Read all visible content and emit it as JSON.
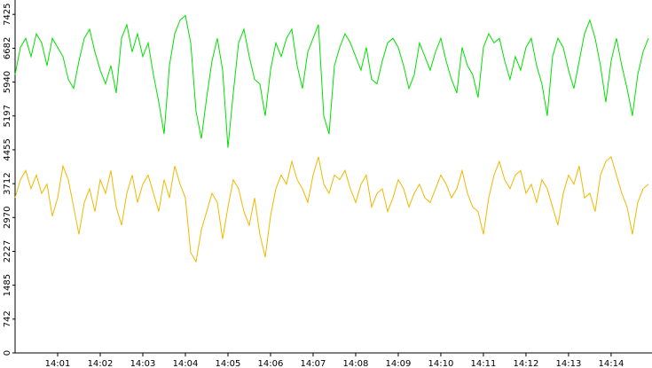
{
  "chart_data": {
    "type": "line",
    "x": [
      0,
      0.125,
      0.25,
      0.375,
      0.5,
      0.625,
      0.75,
      0.875,
      1,
      1.125,
      1.25,
      1.375,
      1.5,
      1.625,
      1.75,
      1.875,
      2,
      2.125,
      2.25,
      2.375,
      2.5,
      2.625,
      2.75,
      2.875,
      3,
      3.125,
      3.25,
      3.375,
      3.5,
      3.625,
      3.75,
      3.875,
      4,
      4.125,
      4.25,
      4.375,
      4.5,
      4.625,
      4.75,
      4.875,
      5,
      5.125,
      5.25,
      5.375,
      5.5,
      5.625,
      5.75,
      5.875,
      6,
      6.125,
      6.25,
      6.375,
      6.5,
      6.625,
      6.75,
      6.875,
      7,
      7.125,
      7.25,
      7.375,
      7.5,
      7.625,
      7.75,
      7.875,
      8,
      8.125,
      8.25,
      8.375,
      8.5,
      8.625,
      8.75,
      8.875,
      9,
      9.125,
      9.25,
      9.375,
      9.5,
      9.625,
      9.75,
      9.875,
      10,
      10.125,
      10.25,
      10.375,
      10.5,
      10.625,
      10.75,
      10.875,
      11,
      11.125,
      11.25,
      11.375,
      11.5,
      11.625,
      11.75,
      11.875,
      12,
      12.125,
      12.25,
      12.375,
      12.5,
      12.625,
      12.75,
      12.875,
      13,
      13.125,
      13.25,
      13.375,
      13.5,
      13.625,
      13.75,
      13.875,
      14,
      14.125,
      14.25,
      14.375,
      14.5,
      14.625,
      14.75,
      14.875
    ],
    "series": [
      {
        "color": "#00e000",
        "values": [
          6100,
          6700,
          6900,
          6500,
          7000,
          6800,
          6300,
          6900,
          6700,
          6500,
          6000,
          5800,
          6400,
          6900,
          7100,
          6600,
          6200,
          5900,
          6300,
          5700,
          6900,
          7200,
          6600,
          7000,
          6500,
          6800,
          6100,
          5500,
          4800,
          6300,
          7000,
          7300,
          7400,
          6800,
          5300,
          4700,
          5600,
          6400,
          6900,
          6200,
          4500,
          5700,
          6800,
          7100,
          6500,
          6000,
          5900,
          5200,
          6200,
          6800,
          6500,
          6900,
          7100,
          6300,
          5800,
          6600,
          6900,
          7200,
          5200,
          4800,
          6300,
          6700,
          7000,
          6800,
          6500,
          6200,
          6700,
          6000,
          5900,
          6400,
          6800,
          6900,
          6700,
          6300,
          5800,
          6100,
          6800,
          6500,
          6200,
          6600,
          6900,
          6400,
          6000,
          5700,
          6700,
          6300,
          6100,
          5600,
          6700,
          7000,
          6800,
          6900,
          6400,
          6000,
          6500,
          6200,
          6700,
          6900,
          6300,
          5900,
          5200,
          6500,
          6900,
          6700,
          6200,
          5800,
          6400,
          7000,
          7300,
          6900,
          6300,
          5500,
          6400,
          6900,
          6300,
          5800,
          5200,
          6100,
          6600,
          6900
        ]
      },
      {
        "color": "#f0b800",
        "values": [
          3400,
          3800,
          4000,
          3600,
          3900,
          3500,
          3700,
          3000,
          3400,
          4100,
          3800,
          3200,
          2600,
          3300,
          3600,
          3100,
          3800,
          3500,
          4000,
          3200,
          2800,
          3500,
          3900,
          3300,
          3700,
          3900,
          3500,
          3100,
          3800,
          3400,
          4100,
          3700,
          3400,
          2200,
          2000,
          2700,
          3100,
          3500,
          3300,
          2500,
          3200,
          3800,
          3600,
          3100,
          2800,
          3400,
          2600,
          2100,
          3000,
          3600,
          3900,
          3700,
          4200,
          3800,
          3600,
          3300,
          3900,
          4300,
          3700,
          3500,
          3900,
          3800,
          4000,
          3600,
          3300,
          3700,
          3900,
          3200,
          3500,
          3600,
          3100,
          3400,
          3800,
          3600,
          3200,
          3500,
          3700,
          3400,
          3300,
          3600,
          3900,
          3700,
          3400,
          3600,
          4000,
          3500,
          3200,
          3100,
          2600,
          3400,
          3900,
          4200,
          3800,
          3600,
          3900,
          4000,
          3500,
          3700,
          3300,
          3800,
          3600,
          3200,
          2800,
          3500,
          3900,
          3700,
          4100,
          3400,
          3500,
          3100,
          3900,
          4200,
          4300,
          3900,
          3500,
          3200,
          2600,
          3300,
          3600,
          3700
        ]
      }
    ],
    "xlim": [
      0,
      14.96
    ],
    "ylim": [
      0,
      7740
    ],
    "xticks": [
      {
        "value": 1,
        "label": "14:01"
      },
      {
        "value": 2,
        "label": "14:02"
      },
      {
        "value": 3,
        "label": "14:03"
      },
      {
        "value": 4,
        "label": "14:04"
      },
      {
        "value": 5,
        "label": "14:05"
      },
      {
        "value": 6,
        "label": "14:06"
      },
      {
        "value": 7,
        "label": "14:07"
      },
      {
        "value": 8,
        "label": "14:08"
      },
      {
        "value": 9,
        "label": "14:09"
      },
      {
        "value": 10,
        "label": "14:10"
      },
      {
        "value": 11,
        "label": "14:11"
      },
      {
        "value": 12,
        "label": "14:12"
      },
      {
        "value": 13,
        "label": "14:13"
      },
      {
        "value": 14,
        "label": "14:14"
      }
    ],
    "yticks": [
      0,
      742,
      1485,
      2227,
      2970,
      3712,
      4455,
      5197,
      5940,
      6682,
      7425
    ]
  }
}
